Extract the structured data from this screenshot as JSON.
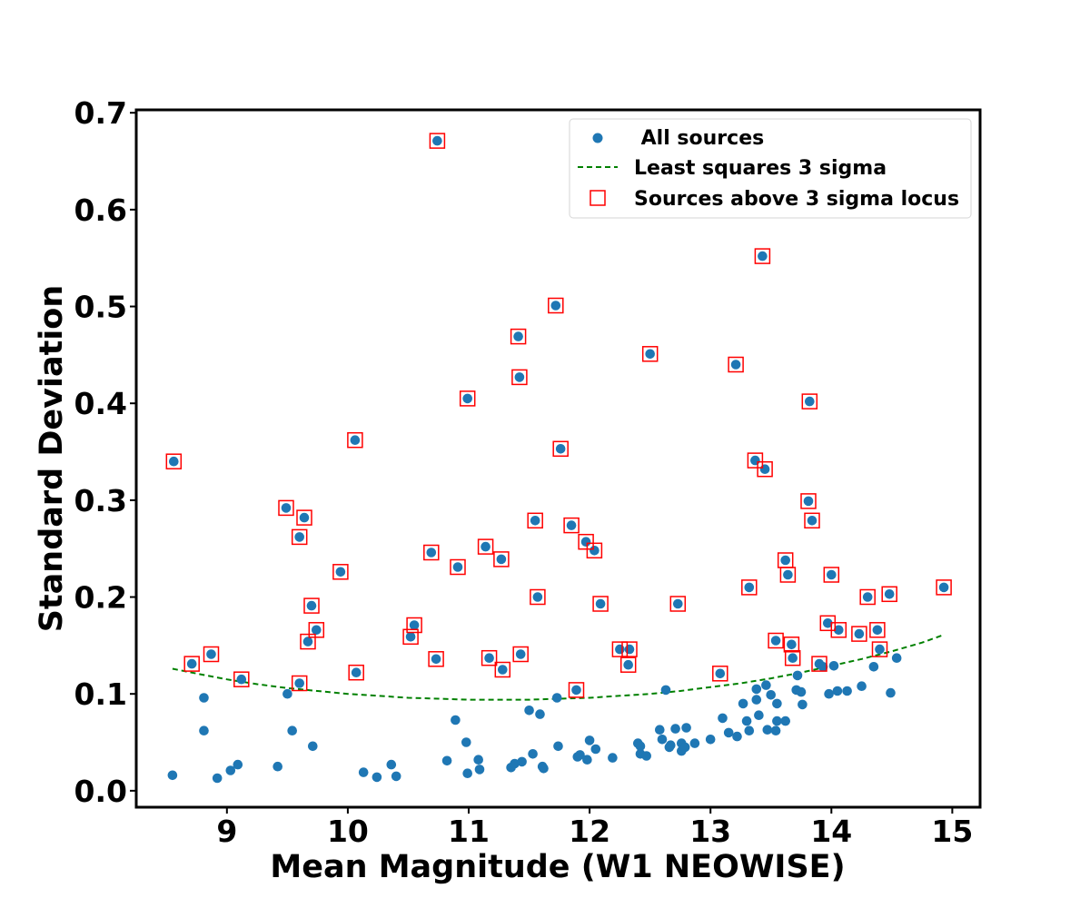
{
  "chart_data": {
    "type": "scatter",
    "title": "",
    "xlabel": "Mean Magnitude (W1 NEOWISE)",
    "ylabel": "Standard Deviation",
    "xlim": [
      8.25,
      15.23
    ],
    "ylim": [
      -0.017,
      0.703
    ],
    "xticks": [
      9,
      10,
      11,
      12,
      13,
      14,
      15
    ],
    "xtick_labels": [
      "9",
      "10",
      "11",
      "12",
      "13",
      "14",
      "15"
    ],
    "yticks": [
      0.0,
      0.1,
      0.2,
      0.3,
      0.4,
      0.5,
      0.6,
      0.7
    ],
    "ytick_labels": [
      "0.0",
      "0.1",
      "0.2",
      "0.3",
      "0.4",
      "0.5",
      "0.6",
      "0.7"
    ],
    "legend_position": "top-right",
    "colors": {
      "points": "#1f77b4",
      "fit": "#008000",
      "outlier_box": "#ff0000",
      "frame": "#000000"
    },
    "series": [
      {
        "name": "All sources",
        "kind": "points",
        "points": [
          [
            8.56,
            0.34
          ],
          [
            8.55,
            0.016
          ],
          [
            8.71,
            0.131
          ],
          [
            8.81,
            0.096
          ],
          [
            8.81,
            0.062
          ],
          [
            8.87,
            0.141
          ],
          [
            8.92,
            0.013
          ],
          [
            9.03,
            0.021
          ],
          [
            9.09,
            0.027
          ],
          [
            9.12,
            0.115
          ],
          [
            9.42,
            0.025
          ],
          [
            9.49,
            0.292
          ],
          [
            9.5,
            0.1
          ],
          [
            9.54,
            0.062
          ],
          [
            9.6,
            0.262
          ],
          [
            9.6,
            0.111
          ],
          [
            9.64,
            0.282
          ],
          [
            9.67,
            0.154
          ],
          [
            9.7,
            0.191
          ],
          [
            9.71,
            0.046
          ],
          [
            9.74,
            0.166
          ],
          [
            9.94,
            0.226
          ],
          [
            10.06,
            0.362
          ],
          [
            10.07,
            0.122
          ],
          [
            10.13,
            0.019
          ],
          [
            10.24,
            0.014
          ],
          [
            10.36,
            0.027
          ],
          [
            10.4,
            0.015
          ],
          [
            10.52,
            0.159
          ],
          [
            10.55,
            0.171
          ],
          [
            10.69,
            0.246
          ],
          [
            10.73,
            0.136
          ],
          [
            10.74,
            0.671
          ],
          [
            10.82,
            0.031
          ],
          [
            10.89,
            0.073
          ],
          [
            10.91,
            0.231
          ],
          [
            10.98,
            0.05
          ],
          [
            10.99,
            0.405
          ],
          [
            10.99,
            0.018
          ],
          [
            11.08,
            0.032
          ],
          [
            11.09,
            0.022
          ],
          [
            11.14,
            0.252
          ],
          [
            11.17,
            0.137
          ],
          [
            11.27,
            0.239
          ],
          [
            11.28,
            0.125
          ],
          [
            11.35,
            0.024
          ],
          [
            11.38,
            0.028
          ],
          [
            11.41,
            0.469
          ],
          [
            11.42,
            0.427
          ],
          [
            11.43,
            0.141
          ],
          [
            11.44,
            0.03
          ],
          [
            11.5,
            0.083
          ],
          [
            11.53,
            0.038
          ],
          [
            11.55,
            0.279
          ],
          [
            11.57,
            0.2
          ],
          [
            11.59,
            0.079
          ],
          [
            11.61,
            0.025
          ],
          [
            11.62,
            0.023
          ],
          [
            11.72,
            0.501
          ],
          [
            11.73,
            0.096
          ],
          [
            11.74,
            0.046
          ],
          [
            11.76,
            0.353
          ],
          [
            11.85,
            0.274
          ],
          [
            11.89,
            0.104
          ],
          [
            11.9,
            0.035
          ],
          [
            11.92,
            0.037
          ],
          [
            11.97,
            0.257
          ],
          [
            11.98,
            0.032
          ],
          [
            12.0,
            0.052
          ],
          [
            12.04,
            0.248
          ],
          [
            12.05,
            0.043
          ],
          [
            12.09,
            0.193
          ],
          [
            12.19,
            0.034
          ],
          [
            12.25,
            0.146
          ],
          [
            12.32,
            0.13
          ],
          [
            12.33,
            0.146
          ],
          [
            12.4,
            0.049
          ],
          [
            12.42,
            0.038
          ],
          [
            12.42,
            0.046
          ],
          [
            12.47,
            0.036
          ],
          [
            12.5,
            0.451
          ],
          [
            12.58,
            0.063
          ],
          [
            12.6,
            0.053
          ],
          [
            12.63,
            0.104
          ],
          [
            12.66,
            0.045
          ],
          [
            12.67,
            0.047
          ],
          [
            12.71,
            0.064
          ],
          [
            12.73,
            0.193
          ],
          [
            12.76,
            0.041
          ],
          [
            12.76,
            0.049
          ],
          [
            12.79,
            0.045
          ],
          [
            12.8,
            0.065
          ],
          [
            12.87,
            0.049
          ],
          [
            13.0,
            0.053
          ],
          [
            13.08,
            0.121
          ],
          [
            13.1,
            0.075
          ],
          [
            13.15,
            0.06
          ],
          [
            13.21,
            0.44
          ],
          [
            13.22,
            0.056
          ],
          [
            13.27,
            0.09
          ],
          [
            13.3,
            0.072
          ],
          [
            13.32,
            0.21
          ],
          [
            13.32,
            0.062
          ],
          [
            13.37,
            0.341
          ],
          [
            13.38,
            0.105
          ],
          [
            13.38,
            0.094
          ],
          [
            13.4,
            0.078
          ],
          [
            13.43,
            0.552
          ],
          [
            13.45,
            0.332
          ],
          [
            13.46,
            0.109
          ],
          [
            13.47,
            0.063
          ],
          [
            13.5,
            0.099
          ],
          [
            13.54,
            0.155
          ],
          [
            13.54,
            0.062
          ],
          [
            13.55,
            0.072
          ],
          [
            13.55,
            0.09
          ],
          [
            13.62,
            0.238
          ],
          [
            13.62,
            0.072
          ],
          [
            13.64,
            0.223
          ],
          [
            13.67,
            0.151
          ],
          [
            13.68,
            0.137
          ],
          [
            13.71,
            0.104
          ],
          [
            13.72,
            0.119
          ],
          [
            13.75,
            0.102
          ],
          [
            13.76,
            0.089
          ],
          [
            13.81,
            0.299
          ],
          [
            13.82,
            0.402
          ],
          [
            13.84,
            0.279
          ],
          [
            13.9,
            0.131
          ],
          [
            13.93,
            0.128
          ],
          [
            13.97,
            0.173
          ],
          [
            13.98,
            0.1
          ],
          [
            14.0,
            0.223
          ],
          [
            14.02,
            0.129
          ],
          [
            14.05,
            0.103
          ],
          [
            14.06,
            0.166
          ],
          [
            14.13,
            0.103
          ],
          [
            14.23,
            0.162
          ],
          [
            14.25,
            0.108
          ],
          [
            14.3,
            0.2
          ],
          [
            14.35,
            0.128
          ],
          [
            14.38,
            0.166
          ],
          [
            14.4,
            0.146
          ],
          [
            14.48,
            0.203
          ],
          [
            14.49,
            0.101
          ],
          [
            14.54,
            0.137
          ],
          [
            14.93,
            0.21
          ]
        ]
      },
      {
        "name": "Least squares 3 sigma",
        "kind": "line",
        "points": [
          [
            8.55,
            0.126
          ],
          [
            8.75,
            0.121
          ],
          [
            9.0,
            0.115
          ],
          [
            9.25,
            0.11
          ],
          [
            9.5,
            0.106
          ],
          [
            9.75,
            0.103
          ],
          [
            10.0,
            0.1
          ],
          [
            10.25,
            0.098
          ],
          [
            10.5,
            0.096
          ],
          [
            10.75,
            0.095
          ],
          [
            11.0,
            0.094
          ],
          [
            11.25,
            0.094
          ],
          [
            11.5,
            0.094
          ],
          [
            11.75,
            0.095
          ],
          [
            12.0,
            0.096
          ],
          [
            12.25,
            0.098
          ],
          [
            12.5,
            0.1
          ],
          [
            12.75,
            0.103
          ],
          [
            13.0,
            0.107
          ],
          [
            13.25,
            0.111
          ],
          [
            13.5,
            0.116
          ],
          [
            13.75,
            0.122
          ],
          [
            14.0,
            0.129
          ],
          [
            14.25,
            0.136
          ],
          [
            14.5,
            0.144
          ],
          [
            14.75,
            0.153
          ],
          [
            14.93,
            0.161
          ]
        ]
      },
      {
        "name": "Sources above 3 sigma locus",
        "kind": "boxes",
        "points": [
          [
            8.56,
            0.34
          ],
          [
            8.71,
            0.131
          ],
          [
            8.87,
            0.141
          ],
          [
            9.12,
            0.115
          ],
          [
            9.49,
            0.292
          ],
          [
            9.6,
            0.262
          ],
          [
            9.6,
            0.111
          ],
          [
            9.64,
            0.282
          ],
          [
            9.67,
            0.154
          ],
          [
            9.7,
            0.191
          ],
          [
            9.74,
            0.166
          ],
          [
            9.94,
            0.226
          ],
          [
            10.06,
            0.362
          ],
          [
            10.07,
            0.122
          ],
          [
            10.52,
            0.159
          ],
          [
            10.55,
            0.171
          ],
          [
            10.69,
            0.246
          ],
          [
            10.73,
            0.136
          ],
          [
            10.74,
            0.671
          ],
          [
            10.91,
            0.231
          ],
          [
            10.99,
            0.405
          ],
          [
            11.14,
            0.252
          ],
          [
            11.17,
            0.137
          ],
          [
            11.27,
            0.239
          ],
          [
            11.28,
            0.125
          ],
          [
            11.41,
            0.469
          ],
          [
            11.42,
            0.427
          ],
          [
            11.43,
            0.141
          ],
          [
            11.55,
            0.279
          ],
          [
            11.57,
            0.2
          ],
          [
            11.72,
            0.501
          ],
          [
            11.76,
            0.353
          ],
          [
            11.85,
            0.274
          ],
          [
            11.89,
            0.104
          ],
          [
            11.97,
            0.257
          ],
          [
            12.04,
            0.248
          ],
          [
            12.09,
            0.193
          ],
          [
            12.25,
            0.146
          ],
          [
            12.32,
            0.13
          ],
          [
            12.33,
            0.146
          ],
          [
            12.5,
            0.451
          ],
          [
            12.73,
            0.193
          ],
          [
            13.08,
            0.121
          ],
          [
            13.21,
            0.44
          ],
          [
            13.32,
            0.21
          ],
          [
            13.37,
            0.341
          ],
          [
            13.43,
            0.552
          ],
          [
            13.45,
            0.332
          ],
          [
            13.54,
            0.155
          ],
          [
            13.62,
            0.238
          ],
          [
            13.64,
            0.223
          ],
          [
            13.67,
            0.151
          ],
          [
            13.68,
            0.137
          ],
          [
            13.81,
            0.299
          ],
          [
            13.82,
            0.402
          ],
          [
            13.84,
            0.279
          ],
          [
            13.9,
            0.131
          ],
          [
            13.97,
            0.173
          ],
          [
            14.0,
            0.223
          ],
          [
            14.06,
            0.166
          ],
          [
            14.23,
            0.162
          ],
          [
            14.3,
            0.2
          ],
          [
            14.38,
            0.166
          ],
          [
            14.4,
            0.146
          ],
          [
            14.48,
            0.203
          ],
          [
            14.93,
            0.21
          ]
        ]
      }
    ],
    "legend": {
      "entries": [
        " All sources",
        "Least squares 3 sigma",
        "Sources above 3 sigma locus"
      ]
    }
  }
}
